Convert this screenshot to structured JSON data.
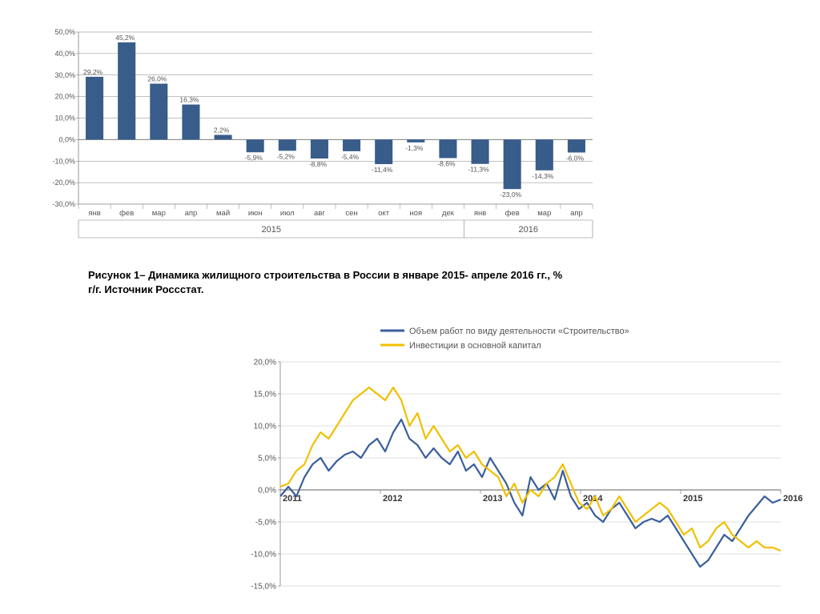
{
  "bar_chart": {
    "type": "bar",
    "categories": [
      "янв",
      "фев",
      "мар",
      "апр",
      "май",
      "июн",
      "июл",
      "авг",
      "сен",
      "окт",
      "ноя",
      "дек",
      "янв",
      "фев",
      "мар",
      "апр"
    ],
    "values": [
      29.2,
      45.2,
      26.0,
      16.3,
      2.2,
      -5.9,
      -5.2,
      -8.8,
      -5.4,
      -11.4,
      -1.3,
      -8.6,
      -11.3,
      -23.0,
      -14.3,
      -6.0
    ],
    "data_labels": [
      "29,2%",
      "45,2%",
      "26,0%",
      "16,3%",
      "2,2%",
      "-5,9%",
      "-5,2%",
      "-8,8%",
      "-5,4%",
      "-11,4%",
      "-1,3%",
      "-8,6%",
      "-11,3%",
      "-23,0%",
      "-14,3%",
      "-6,0%"
    ],
    "group_labels": [
      "2015",
      "2016"
    ],
    "group_breaks": [
      12,
      16
    ],
    "ylim": [
      -30,
      50
    ],
    "ytick_step": 10,
    "ytick_labels": [
      "-30,0%",
      "-20,0%",
      "-10,0%",
      "0,0%",
      "10,0%",
      "20,0%",
      "30,0%",
      "40,0%",
      "50,0%"
    ],
    "bar_color": "#385d8a",
    "axis_color": "#808080",
    "grid_color": "#808080",
    "tick_fontsize": 9,
    "label_fontsize": 8.5,
    "group_fontsize": 11,
    "plot_background": "#ffffff",
    "bar_width": 0.55
  },
  "caption1": "Рисунок 1– Динамика жилищного строительства в России в январе 2015- апреле 2016 гг., % г/г. Источник Россстат.",
  "line_chart": {
    "type": "line",
    "legend": [
      "Объем работ по виду деятельности «Строительство»",
      "Инвестиции в основной капитал"
    ],
    "x_labels": [
      "2011",
      "2012",
      "2013",
      "2014",
      "2015",
      "2016"
    ],
    "ylim": [
      -15,
      20
    ],
    "ytick_step": 5,
    "ytick_labels": [
      "-15,0%",
      "-10,0%",
      "-5,0%",
      "0,0%",
      "5,0%",
      "10,0%",
      "15,0%",
      "20,0%"
    ],
    "series": [
      {
        "name": "construction",
        "color": "#3a5f9a",
        "width": 2.2,
        "points": [
          -1.0,
          0.5,
          -1.0,
          2.0,
          4.0,
          5.0,
          3.0,
          4.5,
          5.5,
          6.0,
          5.0,
          7.0,
          8.0,
          6.0,
          9.0,
          11.0,
          8.0,
          7.0,
          5.0,
          6.5,
          5.0,
          4.0,
          6.0,
          3.0,
          4.0,
          2.0,
          5.0,
          3.0,
          1.0,
          -2.0,
          -4.0,
          2.0,
          0.0,
          1.0,
          -1.5,
          3.0,
          -1.0,
          -3.0,
          -2.0,
          -4.0,
          -5.0,
          -3.0,
          -2.0,
          -4.0,
          -6.0,
          -5.0,
          -4.5,
          -5.0,
          -4.0,
          -6.0,
          -8.0,
          -10.0,
          -12.0,
          -11.0,
          -9.0,
          -7.0,
          -8.0,
          -6.0,
          -4.0,
          -2.5,
          -1.0,
          -2.0,
          -1.5
        ]
      },
      {
        "name": "investment",
        "color": "#f0c000",
        "width": 2.2,
        "points": [
          0.5,
          1.0,
          3.0,
          4.0,
          7.0,
          9.0,
          8.0,
          10.0,
          12.0,
          14.0,
          15.0,
          16.0,
          15.0,
          14.0,
          16.0,
          14.0,
          10.0,
          12.0,
          8.0,
          10.0,
          8.0,
          6.0,
          7.0,
          5.0,
          6.0,
          4.0,
          3.0,
          2.0,
          -1.0,
          1.0,
          -2.0,
          0.0,
          -1.0,
          1.0,
          2.0,
          4.0,
          1.0,
          -2.0,
          -3.0,
          -1.0,
          -4.0,
          -3.0,
          -1.0,
          -3.0,
          -5.0,
          -4.0,
          -3.0,
          -2.0,
          -3.0,
          -5.0,
          -7.0,
          -6.0,
          -9.0,
          -8.0,
          -6.0,
          -5.0,
          -7.0,
          -8.0,
          -9.0,
          -8.0,
          -9.0,
          -9.0,
          -9.5
        ]
      }
    ],
    "axis_color": "#808080",
    "grid_color": "#c0c0c0",
    "tick_fontsize": 10,
    "legend_fontsize": 11,
    "plot_background": "#ffffff"
  }
}
